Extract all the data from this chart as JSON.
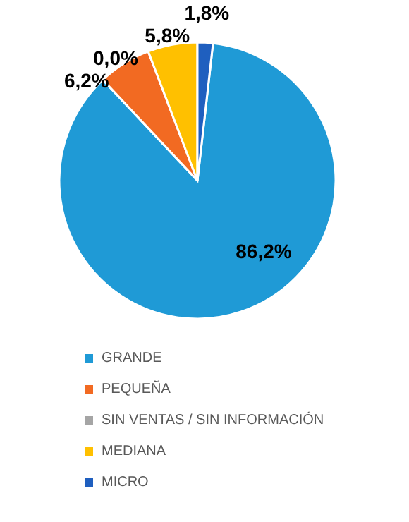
{
  "chart_data": {
    "type": "pie",
    "categories": [
      "GRANDE",
      "PEQUEÑA",
      "SIN VENTAS / SIN INFORMACIÓN",
      "MEDIANA",
      "MICRO"
    ],
    "values": [
      86.2,
      6.2,
      0.0,
      5.8,
      1.8
    ],
    "value_labels": [
      "86,2%",
      "6,2%",
      "0,0%",
      "5,8%",
      "1,8%"
    ],
    "colors": [
      "#1f9ad6",
      "#f26a22",
      "#a5a5a5",
      "#ffc000",
      "#1f5fbf"
    ],
    "legend": "bottom"
  }
}
